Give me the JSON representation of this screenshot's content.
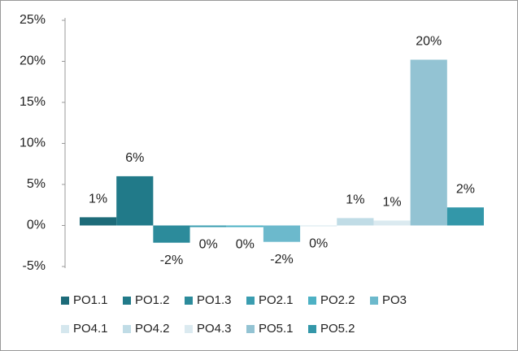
{
  "chart_data": {
    "type": "bar",
    "series": [
      {
        "name": "PO1.1",
        "color": "#1d6b79",
        "values": [
          1
        ],
        "value_labels": [
          "1%"
        ]
      },
      {
        "name": "PO1.2",
        "color": "#217a89",
        "values": [
          6
        ],
        "value_labels": [
          "6%"
        ]
      },
      {
        "name": "PO1.3",
        "color": "#2c8b9b",
        "values": [
          -2.1
        ],
        "value_labels": [
          "-2%"
        ]
      },
      {
        "name": "PO2.1",
        "color": "#3a9db0",
        "values": [
          -0.2
        ],
        "value_labels": [
          "0%"
        ]
      },
      {
        "name": "PO2.2",
        "color": "#4db1c4",
        "values": [
          -0.2
        ],
        "value_labels": [
          "0%"
        ]
      },
      {
        "name": "PO3",
        "color": "#6cb9cc",
        "values": [
          -2
        ],
        "value_labels": [
          "-2%"
        ]
      },
      {
        "name": "PO4.1",
        "color": "#d5e7ee",
        "values": [
          -0.1
        ],
        "value_labels": [
          "0%"
        ]
      },
      {
        "name": "PO4.2",
        "color": "#c0dce6",
        "values": [
          0.9
        ],
        "value_labels": [
          "1%"
        ]
      },
      {
        "name": "PO4.3",
        "color": "#dbeaf0",
        "values": [
          0.6
        ],
        "value_labels": [
          "1%"
        ]
      },
      {
        "name": "PO5.1",
        "color": "#93c3d3",
        "values": [
          20.2
        ],
        "value_labels": [
          "20%"
        ]
      },
      {
        "name": "PO5.2",
        "color": "#3397a9",
        "values": [
          2.2
        ],
        "value_labels": [
          "2%"
        ]
      }
    ],
    "ylim": [
      -5,
      25
    ],
    "yticks": [
      {
        "value": -5,
        "label": "-5%"
      },
      {
        "value": 0,
        "label": "0%"
      },
      {
        "value": 5,
        "label": "5%"
      },
      {
        "value": 10,
        "label": "10%"
      },
      {
        "value": 15,
        "label": "15%"
      },
      {
        "value": 20,
        "label": "20%"
      },
      {
        "value": 25,
        "label": "25%"
      }
    ]
  }
}
